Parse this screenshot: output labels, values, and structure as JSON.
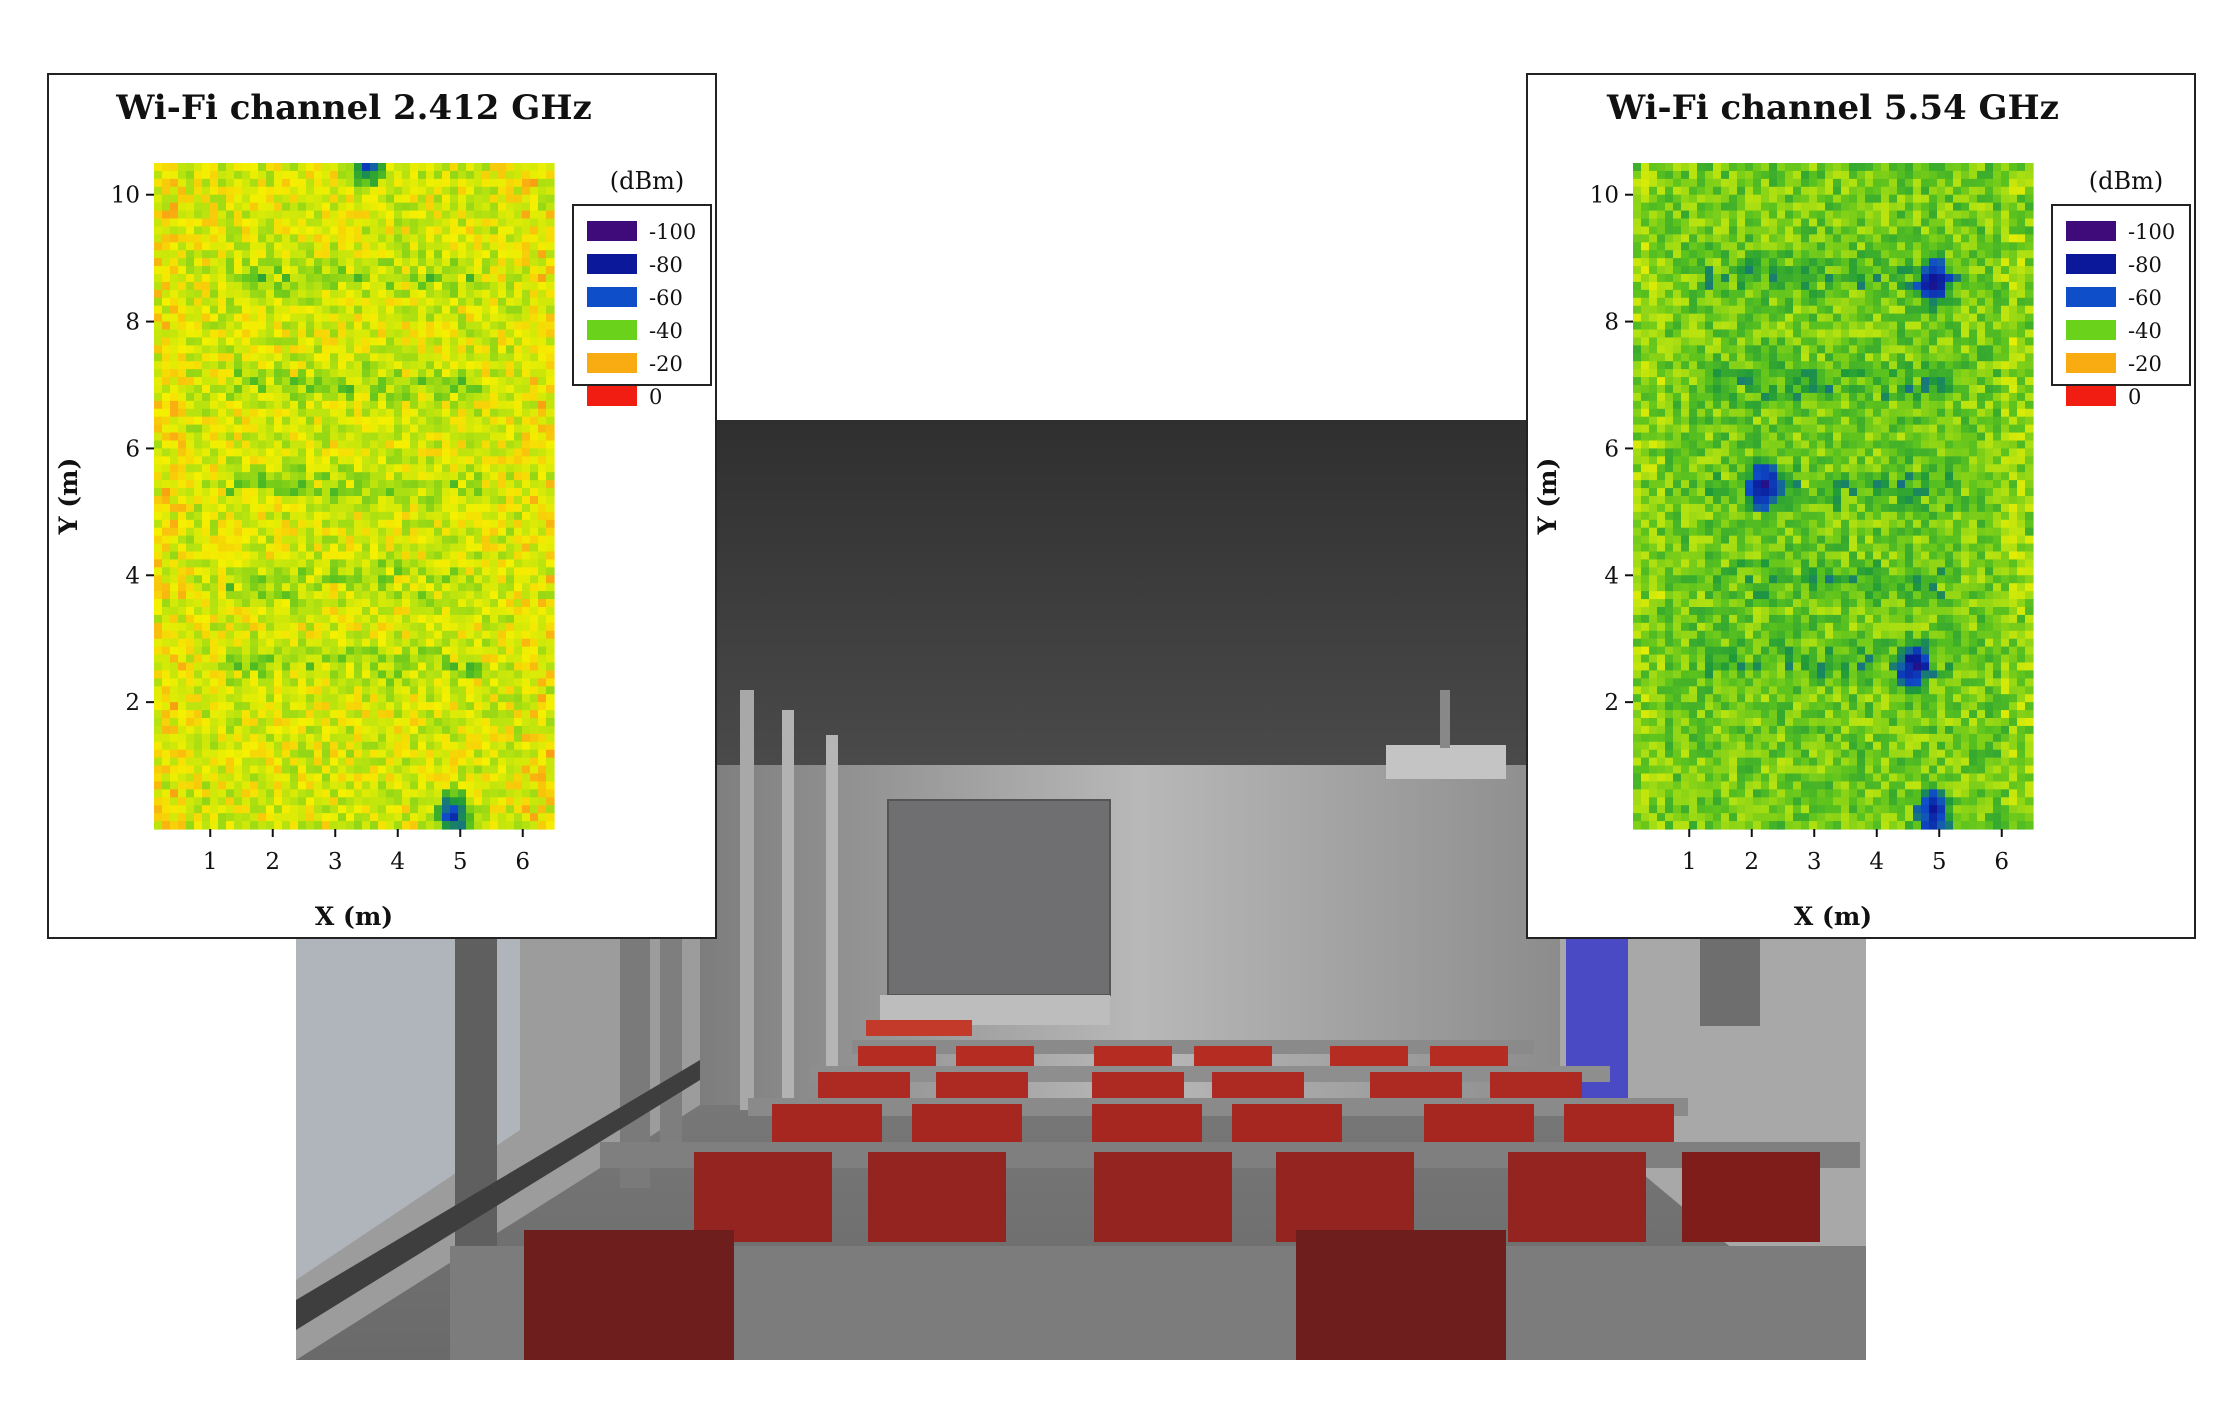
{
  "chart_data": [
    {
      "type": "heatmap",
      "title": "Wi-Fi channel 2.412 GHz",
      "xlabel": "X (m)",
      "ylabel": "Y (m)",
      "xlim": [
        0.1,
        6.5
      ],
      "ylim": [
        0,
        10.5
      ],
      "xticks": [
        "1",
        "2",
        "3",
        "4",
        "5",
        "6"
      ],
      "yticks": [
        "2",
        "4",
        "6",
        "8",
        "10"
      ],
      "legend": {
        "unit": "(dBm)",
        "placement": "top-right",
        "entries": [
          {
            "label": "-100",
            "color": "#3f0a7a"
          },
          {
            "label": "-80",
            "color": "#0a1899"
          },
          {
            "label": "-60",
            "color": "#0f4ec9"
          },
          {
            "label": "-40",
            "color": "#6ad21a"
          },
          {
            "label": "-20",
            "color": "#f9ab12"
          },
          {
            "label": "0",
            "color": "#f21d12"
          }
        ]
      },
      "dominant_level_dBm": -30,
      "weak_bands_y": [
        8.7,
        7.0,
        5.4,
        3.9,
        2.6
      ],
      "weak_spots": [
        {
          "x": 4.9,
          "y": 0.25
        },
        {
          "x": 3.5,
          "y": 10.5
        }
      ]
    },
    {
      "type": "heatmap",
      "title": "Wi-Fi channel 5.54 GHz",
      "xlabel": "X (m)",
      "ylabel": "Y (m)",
      "xlim": [
        0.1,
        6.5
      ],
      "ylim": [
        0,
        10.5
      ],
      "xticks": [
        "1",
        "2",
        "3",
        "4",
        "5",
        "6"
      ],
      "yticks": [
        "2",
        "4",
        "6",
        "8",
        "10"
      ],
      "legend": {
        "unit": "(dBm)",
        "placement": "top-right",
        "entries": [
          {
            "label": "-100",
            "color": "#3f0a7a"
          },
          {
            "label": "-80",
            "color": "#0a1899"
          },
          {
            "label": "-60",
            "color": "#0f4ec9"
          },
          {
            "label": "-40",
            "color": "#6ad21a"
          },
          {
            "label": "-20",
            "color": "#f9ab12"
          },
          {
            "label": "0",
            "color": "#f21d12"
          }
        ]
      },
      "dominant_level_dBm": -40,
      "weak_bands_y": [
        8.7,
        7.0,
        5.4,
        3.9,
        2.6
      ],
      "weak_spots": [
        {
          "x": 2.2,
          "y": 5.4
        },
        {
          "x": 4.6,
          "y": 2.6
        },
        {
          "x": 4.9,
          "y": 8.6
        },
        {
          "x": 4.9,
          "y": 0.25
        }
      ]
    }
  ]
}
